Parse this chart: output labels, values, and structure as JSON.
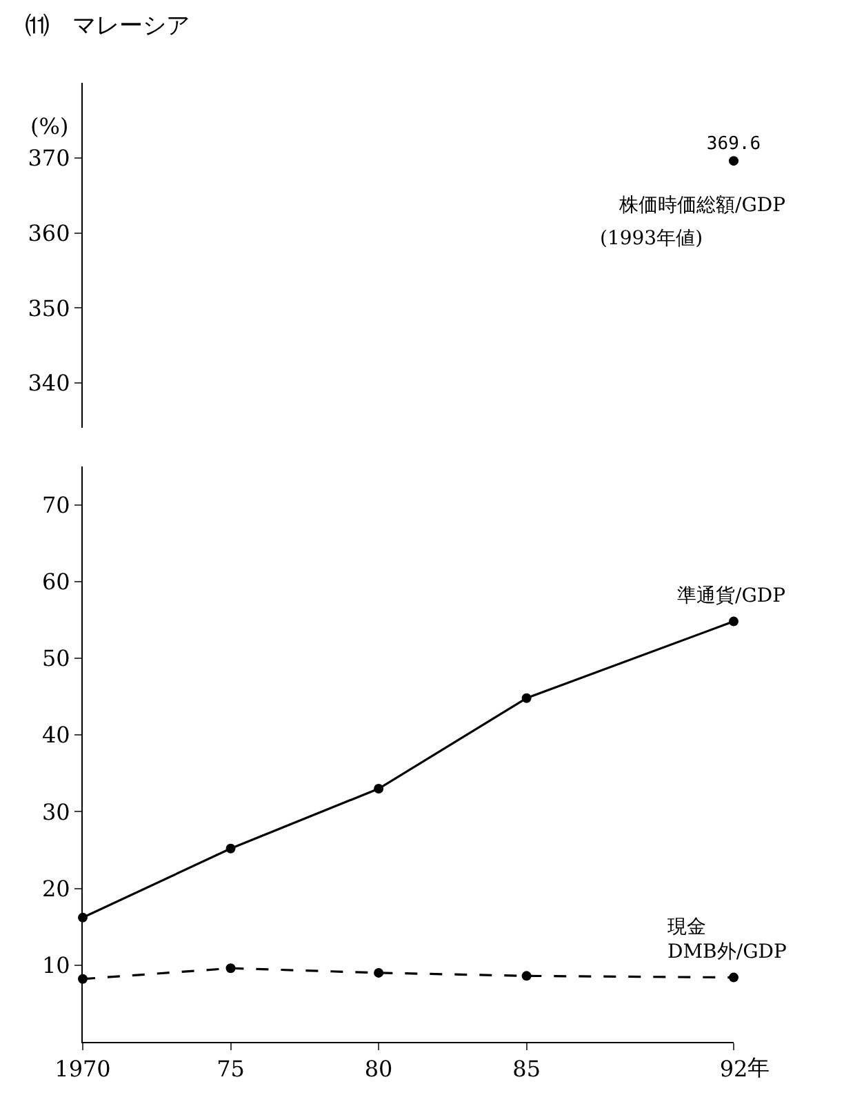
{
  "chart_data": [
    {
      "type": "scatter",
      "title": "⑾　マレーシア",
      "ylabel": "(%)",
      "x": [
        1992
      ],
      "xlim": [
        1970,
        1992
      ],
      "ylim": [
        334,
        380
      ],
      "yticks": [
        340,
        350,
        360,
        370
      ],
      "tick_labels": "y",
      "marker": "circle",
      "data_labels": true,
      "series": [
        {
          "name": "株価時価総額/GDP",
          "color": "#000000",
          "values": [
            369.6
          ]
        }
      ],
      "annotations": [
        "(1993年値)"
      ]
    },
    {
      "type": "line",
      "x": [
        1970,
        1975,
        1980,
        1985,
        1992
      ],
      "xlim": [
        1970,
        1992
      ],
      "ylim": [
        0,
        75
      ],
      "yticks": [
        10,
        20,
        30,
        40,
        50,
        60,
        70
      ],
      "xticks": [
        1970,
        {
          "value": 1975,
          "label": "75"
        },
        {
          "value": 1980,
          "label": "80"
        },
        {
          "value": 1985,
          "label": "85"
        },
        {
          "value": 1992,
          "label": "92"
        }
      ],
      "xlabel": "年",
      "marker": "circle",
      "series": [
        {
          "name": "準通貨/GDP",
          "color": "#000000",
          "values": [
            16.2,
            25.2,
            33.0,
            44.8,
            54.8
          ],
          "line_style": "solid"
        },
        {
          "name": "現金\nDMB外/GDP",
          "color": "#000000",
          "values": [
            8.2,
            9.6,
            9.0,
            8.6,
            8.4
          ],
          "line_style": "dashed"
        }
      ]
    }
  ]
}
